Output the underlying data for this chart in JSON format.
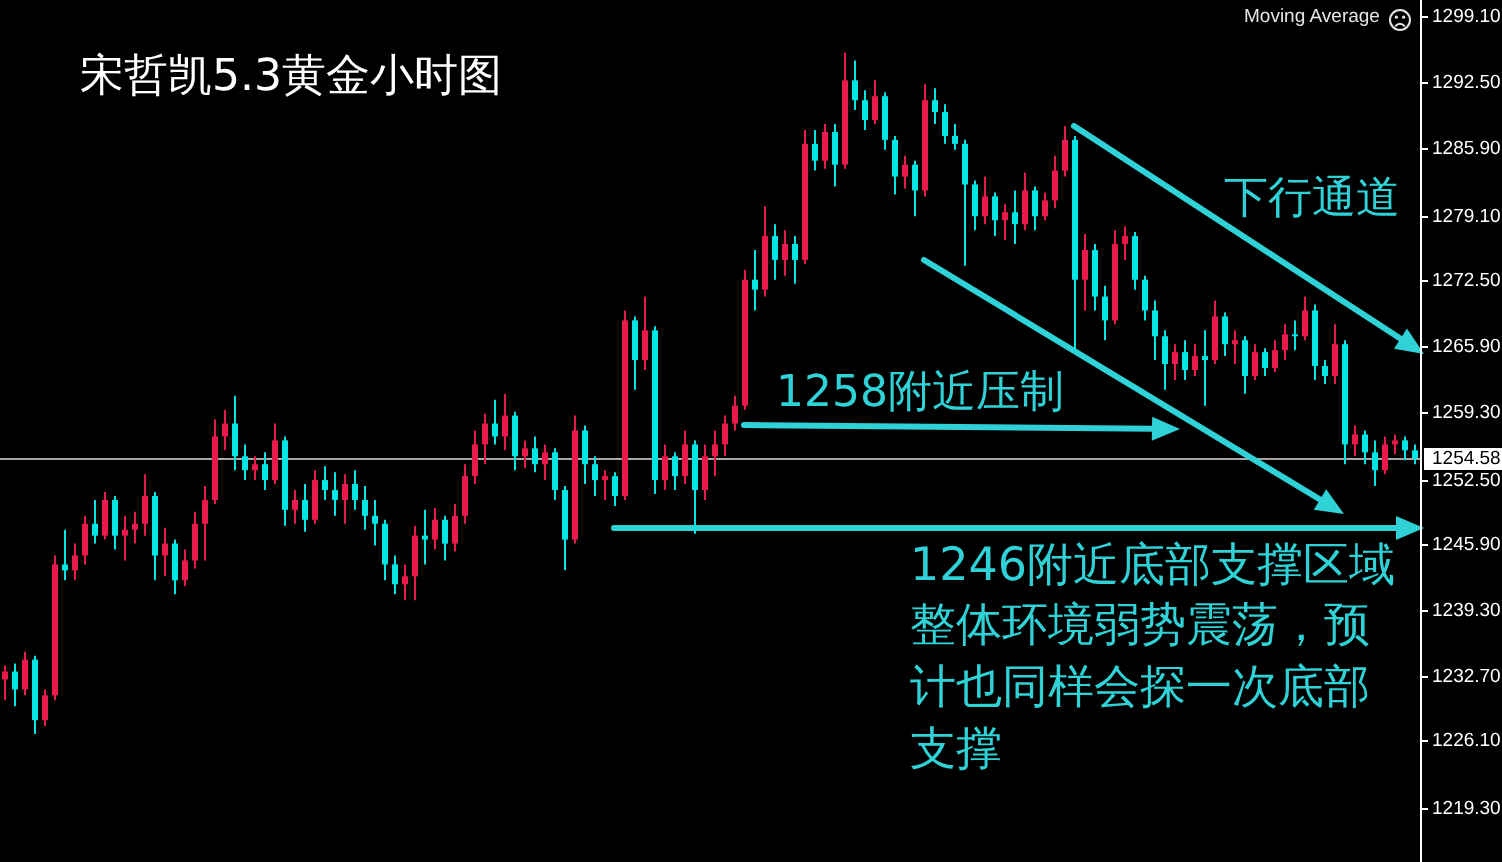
{
  "chart_data": {
    "type": "candlestick",
    "title": "宋哲凯5.3黄金小时图",
    "annotations": [
      "Moving Average",
      "下行通道",
      "1258附近压制",
      "1246附近底部支撑区域",
      "整体环境弱势震荡，预计也同样会探一次底部支撑"
    ],
    "categories": [
      null,
      null,
      null,
      null,
      null,
      null,
      null,
      null,
      null,
      null,
      null,
      null,
      null,
      null,
      null,
      null,
      null,
      null,
      null,
      null,
      null,
      null,
      null,
      null,
      null,
      null,
      null,
      null,
      null,
      null,
      null,
      null,
      null,
      null,
      null,
      null,
      null,
      null,
      null,
      null,
      null,
      null,
      null,
      null,
      null,
      null,
      null,
      null,
      null,
      null,
      null,
      null,
      null,
      null,
      null,
      null,
      null,
      null,
      null,
      null,
      null,
      null,
      null,
      null,
      null,
      null,
      null,
      null,
      null,
      null,
      null,
      null,
      null,
      null,
      null,
      null,
      null,
      null,
      null,
      null,
      null,
      null,
      null,
      null,
      null,
      null,
      null,
      null,
      null,
      null,
      null,
      null,
      null,
      null,
      null,
      null,
      null,
      null,
      null,
      null,
      null,
      null,
      null,
      null,
      null,
      null,
      null,
      null,
      null,
      null,
      null,
      null,
      null,
      null,
      null,
      null,
      null,
      null,
      null,
      null,
      null,
      null,
      null,
      null,
      null,
      null,
      null,
      null,
      null,
      null,
      null,
      null,
      null,
      null,
      null,
      null,
      null,
      null,
      null,
      null,
      null,
      null
    ],
    "ohlc": [
      [
        1232.3,
        1233.7,
        1230.2,
        1233.1
      ],
      [
        1233.1,
        1233.9,
        1229.6,
        1231.3
      ],
      [
        1231.3,
        1235.1,
        1230.7,
        1234.3
      ],
      [
        1234.3,
        1234.7,
        1226.8,
        1228.2
      ],
      [
        1228.2,
        1231.3,
        1227.6,
        1230.7
      ],
      [
        1230.7,
        1244.8,
        1230.2,
        1243.9
      ],
      [
        1243.9,
        1247.4,
        1242.3,
        1243.3
      ],
      [
        1243.3,
        1246.0,
        1242.3,
        1244.8
      ],
      [
        1244.8,
        1248.8,
        1243.9,
        1248.0
      ],
      [
        1248.0,
        1250.4,
        1246.0,
        1246.8
      ],
      [
        1246.8,
        1251.2,
        1246.4,
        1250.4
      ],
      [
        1250.4,
        1250.8,
        1245.4,
        1246.8
      ],
      [
        1246.8,
        1248.8,
        1244.3,
        1247.4
      ],
      [
        1247.4,
        1249.2,
        1246.0,
        1248.0
      ],
      [
        1248.0,
        1253.0,
        1246.8,
        1250.8
      ],
      [
        1250.8,
        1251.2,
        1242.3,
        1244.8
      ],
      [
        1244.8,
        1247.6,
        1242.7,
        1246.0
      ],
      [
        1246.0,
        1246.4,
        1240.9,
        1242.3
      ],
      [
        1242.3,
        1245.4,
        1241.7,
        1244.3
      ],
      [
        1244.3,
        1249.2,
        1243.5,
        1248.0
      ],
      [
        1248.0,
        1251.8,
        1244.3,
        1250.4
      ],
      [
        1250.4,
        1258.5,
        1250.0,
        1256.8
      ],
      [
        1256.8,
        1259.5,
        1255.4,
        1258.1
      ],
      [
        1258.1,
        1260.9,
        1253.4,
        1254.8
      ],
      [
        1254.8,
        1256.0,
        1252.4,
        1253.4
      ],
      [
        1253.4,
        1254.8,
        1252.4,
        1254.0
      ],
      [
        1254.0,
        1255.2,
        1251.4,
        1252.4
      ],
      [
        1252.4,
        1258.1,
        1252.0,
        1256.4
      ],
      [
        1256.4,
        1256.8,
        1247.8,
        1249.4
      ],
      [
        1249.4,
        1251.4,
        1248.0,
        1250.4
      ],
      [
        1250.4,
        1252.0,
        1247.2,
        1248.4
      ],
      [
        1248.4,
        1253.4,
        1248.0,
        1252.4
      ],
      [
        1252.4,
        1253.8,
        1250.4,
        1251.4
      ],
      [
        1251.4,
        1253.2,
        1248.8,
        1250.4
      ],
      [
        1250.4,
        1253.0,
        1248.0,
        1252.0
      ],
      [
        1252.0,
        1253.4,
        1249.4,
        1250.4
      ],
      [
        1250.4,
        1251.8,
        1247.4,
        1248.8
      ],
      [
        1248.8,
        1250.4,
        1245.8,
        1248.0
      ],
      [
        1248.0,
        1248.4,
        1242.3,
        1243.9
      ],
      [
        1243.9,
        1244.8,
        1240.9,
        1241.9
      ],
      [
        1241.9,
        1243.9,
        1240.3,
        1242.7
      ],
      [
        1242.7,
        1247.8,
        1240.3,
        1246.8
      ],
      [
        1246.8,
        1249.4,
        1243.9,
        1246.4
      ],
      [
        1246.4,
        1249.6,
        1245.4,
        1248.4
      ],
      [
        1248.4,
        1248.8,
        1244.3,
        1246.0
      ],
      [
        1246.0,
        1250.0,
        1245.2,
        1248.8
      ],
      [
        1248.8,
        1254.0,
        1248.0,
        1252.8
      ],
      [
        1252.8,
        1257.4,
        1252.0,
        1256.0
      ],
      [
        1256.0,
        1259.1,
        1254.0,
        1258.1
      ],
      [
        1258.1,
        1260.5,
        1256.0,
        1256.8
      ],
      [
        1256.8,
        1261.1,
        1255.4,
        1258.9
      ],
      [
        1258.9,
        1259.3,
        1253.4,
        1254.8
      ],
      [
        1254.8,
        1256.4,
        1253.6,
        1255.6
      ],
      [
        1255.6,
        1256.8,
        1253.2,
        1254.0
      ],
      [
        1254.0,
        1256.0,
        1252.4,
        1255.2
      ],
      [
        1255.2,
        1255.6,
        1250.4,
        1251.4
      ],
      [
        1251.4,
        1251.8,
        1243.3,
        1246.4
      ],
      [
        1246.4,
        1258.9,
        1246.0,
        1257.4
      ],
      [
        1257.4,
        1257.9,
        1252.0,
        1254.0
      ],
      [
        1254.0,
        1254.8,
        1250.8,
        1252.4
      ],
      [
        1252.4,
        1253.4,
        1250.4,
        1252.8
      ],
      [
        1252.8,
        1253.2,
        1249.8,
        1250.8
      ],
      [
        1250.8,
        1269.5,
        1250.4,
        1268.5
      ],
      [
        1268.5,
        1268.9,
        1261.5,
        1264.5
      ],
      [
        1264.5,
        1270.9,
        1263.5,
        1267.5
      ],
      [
        1267.5,
        1267.9,
        1251.0,
        1252.4
      ],
      [
        1252.4,
        1256.0,
        1251.4,
        1254.8
      ],
      [
        1254.8,
        1255.2,
        1251.4,
        1252.8
      ],
      [
        1252.8,
        1257.4,
        1252.0,
        1256.0
      ],
      [
        1256.0,
        1256.4,
        1247.0,
        1251.4
      ],
      [
        1251.4,
        1256.0,
        1250.4,
        1254.8
      ],
      [
        1254.8,
        1257.4,
        1252.8,
        1256.0
      ],
      [
        1256.0,
        1258.9,
        1254.8,
        1258.1
      ],
      [
        1258.1,
        1260.9,
        1257.4,
        1259.9
      ],
      [
        1259.9,
        1273.6,
        1259.5,
        1272.6
      ],
      [
        1272.6,
        1275.6,
        1269.5,
        1271.6
      ],
      [
        1271.6,
        1280.0,
        1270.9,
        1277.0
      ],
      [
        1277.0,
        1278.2,
        1272.6,
        1274.6
      ],
      [
        1274.6,
        1277.6,
        1273.0,
        1276.2
      ],
      [
        1276.2,
        1277.0,
        1272.2,
        1274.6
      ],
      [
        1274.6,
        1287.7,
        1274.2,
        1286.3
      ],
      [
        1286.3,
        1287.7,
        1283.6,
        1284.6
      ],
      [
        1284.6,
        1288.3,
        1283.8,
        1287.5
      ],
      [
        1287.5,
        1288.3,
        1282.0,
        1284.2
      ],
      [
        1284.2,
        1295.5,
        1283.8,
        1292.7
      ],
      [
        1292.7,
        1294.7,
        1289.7,
        1290.7
      ],
      [
        1290.7,
        1291.7,
        1287.7,
        1288.7
      ],
      [
        1288.7,
        1292.7,
        1288.3,
        1291.1
      ],
      [
        1291.1,
        1291.5,
        1285.7,
        1286.7
      ],
      [
        1286.7,
        1287.1,
        1281.2,
        1283.0
      ],
      [
        1283.0,
        1285.1,
        1281.8,
        1284.2
      ],
      [
        1284.2,
        1284.6,
        1279.0,
        1281.6
      ],
      [
        1281.6,
        1292.3,
        1281.0,
        1290.7
      ],
      [
        1290.7,
        1291.9,
        1288.3,
        1289.5
      ],
      [
        1289.5,
        1290.3,
        1286.3,
        1287.1
      ],
      [
        1287.1,
        1288.3,
        1285.7,
        1286.3
      ],
      [
        1286.3,
        1286.7,
        1274.0,
        1282.2
      ],
      [
        1282.2,
        1282.6,
        1277.6,
        1279.0
      ],
      [
        1279.0,
        1283.0,
        1278.2,
        1281.0
      ],
      [
        1281.0,
        1281.4,
        1277.0,
        1278.6
      ],
      [
        1278.6,
        1280.2,
        1276.6,
        1279.4
      ],
      [
        1279.4,
        1281.6,
        1276.2,
        1278.2
      ],
      [
        1278.2,
        1283.4,
        1277.6,
        1281.6
      ],
      [
        1281.6,
        1282.0,
        1277.6,
        1279.0
      ],
      [
        1279.0,
        1281.4,
        1278.6,
        1280.6
      ],
      [
        1280.6,
        1285.1,
        1279.8,
        1283.6
      ],
      [
        1283.6,
        1288.1,
        1283.0,
        1286.7
      ],
      [
        1286.7,
        1287.1,
        1265.5,
        1272.6
      ],
      [
        1272.6,
        1277.2,
        1269.5,
        1275.6
      ],
      [
        1275.6,
        1276.2,
        1269.5,
        1270.9
      ],
      [
        1270.9,
        1272.0,
        1266.5,
        1268.5
      ],
      [
        1268.5,
        1277.6,
        1268.1,
        1276.2
      ],
      [
        1276.2,
        1278.0,
        1274.6,
        1277.0
      ],
      [
        1277.0,
        1277.4,
        1271.6,
        1272.6
      ],
      [
        1272.6,
        1273.0,
        1268.5,
        1269.5
      ],
      [
        1269.5,
        1270.5,
        1264.5,
        1266.9
      ],
      [
        1266.9,
        1267.5,
        1261.5,
        1264.1
      ],
      [
        1264.1,
        1266.1,
        1262.5,
        1265.3
      ],
      [
        1265.3,
        1266.5,
        1262.5,
        1263.5
      ],
      [
        1263.5,
        1266.1,
        1262.9,
        1264.9
      ],
      [
        1264.9,
        1267.5,
        1259.9,
        1264.5
      ],
      [
        1264.5,
        1270.5,
        1264.1,
        1268.9
      ],
      [
        1268.9,
        1269.3,
        1264.9,
        1266.1
      ],
      [
        1266.1,
        1267.5,
        1264.1,
        1266.5
      ],
      [
        1266.5,
        1266.9,
        1261.1,
        1262.9
      ],
      [
        1262.9,
        1266.1,
        1262.5,
        1265.3
      ],
      [
        1265.3,
        1265.7,
        1262.9,
        1263.7
      ],
      [
        1263.7,
        1266.5,
        1263.3,
        1265.5
      ],
      [
        1265.5,
        1268.1,
        1264.5,
        1267.1
      ],
      [
        1267.1,
        1268.5,
        1265.5,
        1266.9
      ],
      [
        1266.9,
        1270.9,
        1266.5,
        1269.5
      ],
      [
        1269.5,
        1270.1,
        1262.5,
        1263.9
      ],
      [
        1263.9,
        1264.5,
        1262.1,
        1262.9
      ],
      [
        1262.9,
        1268.1,
        1262.1,
        1266.1
      ],
      [
        1266.1,
        1266.5,
        1254.0,
        1256.0
      ],
      [
        1256.0,
        1257.9,
        1254.8,
        1257.0
      ],
      [
        1257.0,
        1257.4,
        1254.0,
        1255.2
      ],
      [
        1255.2,
        1256.4,
        1251.8,
        1253.4
      ],
      [
        1253.4,
        1256.8,
        1253.0,
        1256.0
      ],
      [
        1256.0,
        1257.0,
        1255.0,
        1256.4
      ],
      [
        1256.4,
        1256.8,
        1254.4,
        1255.4
      ],
      [
        1255.4,
        1256.0,
        1254.0,
        1254.58
      ]
    ],
    "colors": [
      "#e8194b",
      "#00e5e5",
      "#e8194b",
      "#00e5e5",
      "#e8194b",
      "#e8194b",
      "#00e5e5",
      "#e8194b",
      "#e8194b",
      "#00e5e5",
      "#e8194b",
      "#00e5e5",
      "#e8194b",
      "#e8194b",
      "#e8194b",
      "#00e5e5",
      "#e8194b",
      "#00e5e5",
      "#e8194b",
      "#e8194b",
      "#e8194b",
      "#e8194b",
      "#e8194b",
      "#00e5e5",
      "#00e5e5",
      "#e8194b",
      "#00e5e5",
      "#e8194b",
      "#00e5e5",
      "#e8194b",
      "#00e5e5",
      "#e8194b",
      "#00e5e5",
      "#00e5e5",
      "#e8194b",
      "#00e5e5",
      "#00e5e5",
      "#00e5e5",
      "#00e5e5",
      "#00e5e5",
      "#e8194b",
      "#e8194b",
      "#00e5e5",
      "#e8194b",
      "#00e5e5",
      "#e8194b",
      "#e8194b",
      "#e8194b",
      "#e8194b",
      "#00e5e5",
      "#e8194b",
      "#00e5e5",
      "#e8194b",
      "#00e5e5",
      "#e8194b",
      "#00e5e5",
      "#00e5e5",
      "#e8194b",
      "#00e5e5",
      "#00e5e5",
      "#e8194b",
      "#00e5e5",
      "#e8194b",
      "#00e5e5",
      "#e8194b",
      "#00e5e5",
      "#e8194b",
      "#00e5e5",
      "#e8194b",
      "#00e5e5",
      "#e8194b",
      "#e8194b",
      "#e8194b",
      "#e8194b",
      "#e8194b",
      "#00e5e5",
      "#e8194b",
      "#00e5e5",
      "#e8194b",
      "#00e5e5",
      "#e8194b",
      "#00e5e5",
      "#e8194b",
      "#00e5e5",
      "#e8194b",
      "#00e5e5",
      "#00e5e5",
      "#e8194b",
      "#00e5e5",
      "#00e5e5",
      "#e8194b",
      "#00e5e5",
      "#e8194b",
      "#00e5e5",
      "#00e5e5",
      "#00e5e5",
      "#00e5e5",
      "#00e5e5",
      "#e8194b",
      "#00e5e5",
      "#e8194b",
      "#00e5e5",
      "#e8194b",
      "#00e5e5",
      "#e8194b",
      "#e8194b",
      "#e8194b",
      "#00e5e5",
      "#e8194b",
      "#00e5e5",
      "#00e5e5",
      "#e8194b",
      "#e8194b",
      "#00e5e5",
      "#00e5e5",
      "#00e5e5",
      "#00e5e5",
      "#e8194b",
      "#00e5e5",
      "#e8194b",
      "#00e5e5",
      "#e8194b",
      "#00e5e5",
      "#e8194b",
      "#00e5e5",
      "#e8194b",
      "#00e5e5",
      "#e8194b",
      "#e8194b",
      "#00e5e5",
      "#e8194b",
      "#00e5e5",
      "#00e5e5",
      "#e8194b",
      "#00e5e5",
      "#e8194b",
      "#00e5e5",
      "#00e5e5",
      "#e8194b",
      "#e8194b",
      "#00e5e5",
      "#00e5e5"
    ],
    "ylim": [
      1213.9,
      1300.8
    ],
    "yticks": [
      {
        "value": 1299.1,
        "label": "1299.10"
      },
      {
        "value": 1292.5,
        "label": "1292.50"
      },
      {
        "value": 1285.9,
        "label": "1285.90"
      },
      {
        "value": 1279.1,
        "label": "1279.10"
      },
      {
        "value": 1272.5,
        "label": "1272.50"
      },
      {
        "value": 1265.9,
        "label": "1265.90"
      },
      {
        "value": 1259.3,
        "label": "1259.30"
      },
      {
        "value": 1252.5,
        "label": "1252.50"
      },
      {
        "value": 1245.9,
        "label": "1245.90"
      },
      {
        "value": 1239.3,
        "label": "1239.30"
      },
      {
        "value": 1232.7,
        "label": "1232.70"
      },
      {
        "value": 1226.1,
        "label": "1226.10"
      },
      {
        "value": 1219.3,
        "label": "1219.30"
      }
    ],
    "tick_labels": "y",
    "ref_lines": [
      {
        "axis": "y",
        "value": 1254.58,
        "label": "1254.58",
        "color": "#a6a6a6"
      }
    ]
  }
}
